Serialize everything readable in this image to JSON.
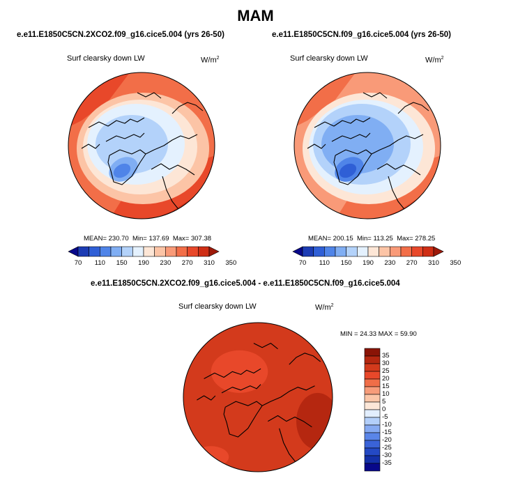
{
  "figure": {
    "season_title": "MAM"
  },
  "colors": {
    "hbar": [
      "#08088a",
      "#1c3cb4",
      "#2f5fd6",
      "#4f84e8",
      "#80aef3",
      "#b3d2fa",
      "#e4f1fe",
      "#fde6d6",
      "#fcc4a6",
      "#f99a78",
      "#f26e48",
      "#e8482a",
      "#cf2e15",
      "#9e1a0a"
    ],
    "vbar": [
      "#08088a",
      "#1430a8",
      "#2449c4",
      "#3a63d8",
      "#5a85e8",
      "#86aaf2",
      "#b3cffa",
      "#e2eefe",
      "#fde7d8",
      "#fbc6a8",
      "#f79c7a",
      "#f06e48",
      "#e8482a",
      "#d33a1c",
      "#b52710",
      "#8a1406"
    ],
    "coast": "#000000"
  },
  "chart_data": [
    {
      "type": "heatmap",
      "projection": "north-polar-stereographic",
      "title": "e.e11.E1850C5CN.2XCO2.f09_g16.cice5.004 (yrs 26-50)",
      "variable": "Surf clearsky down LW",
      "units": "W/m",
      "units_exp": "2",
      "mean_text": "MEAN= 230.70",
      "min_text": "Min= 137.69",
      "max_text": "Max= 307.38",
      "mean": 230.7,
      "min": 137.69,
      "max": 307.38,
      "levels": [
        70,
        90,
        110,
        130,
        150,
        170,
        190,
        210,
        230,
        250,
        270,
        290,
        310,
        330,
        350
      ],
      "level_labels": [
        "70",
        "110",
        "150",
        "190",
        "230",
        "270",
        "310",
        "350"
      ],
      "label_levels": [
        70,
        110,
        150,
        190,
        230,
        270,
        310,
        350
      ]
    },
    {
      "type": "heatmap",
      "projection": "north-polar-stereographic",
      "title": "e.e11.E1850C5CN.f09_g16.cice5.004 (yrs 26-50)",
      "variable": "Surf clearsky down LW",
      "units": "W/m",
      "units_exp": "2",
      "mean_text": "MEAN= 200.15",
      "min_text": "Min= 113.25",
      "max_text": "Max= 278.25",
      "mean": 200.15,
      "min": 113.25,
      "max": 278.25,
      "levels": [
        70,
        90,
        110,
        130,
        150,
        170,
        190,
        210,
        230,
        250,
        270,
        290,
        310,
        330,
        350
      ],
      "level_labels": [
        "70",
        "110",
        "150",
        "190",
        "230",
        "270",
        "310",
        "350"
      ],
      "label_levels": [
        70,
        110,
        150,
        190,
        230,
        270,
        310,
        350
      ]
    },
    {
      "type": "heatmap",
      "projection": "north-polar-stereographic",
      "title": "e.e11.E1850C5CN.2XCO2.f09_g16.cice5.004 - e.e11.E1850C5CN.f09_g16.cice5.004",
      "variable": "Surf clearsky down LW",
      "units": "W/m",
      "units_exp": "2",
      "minmax_text": "MIN =  24.33 MAX =  59.90",
      "min": 24.33,
      "max": 59.9,
      "levels": [
        -35,
        -30,
        -25,
        -20,
        -15,
        -10,
        -5,
        0,
        5,
        10,
        15,
        20,
        25,
        30,
        35
      ],
      "level_labels": [
        "35",
        "30",
        "25",
        "20",
        "15",
        "10",
        "5",
        "0",
        "-5",
        "-10",
        "-15",
        "-20",
        "-25",
        "-30",
        "-35"
      ]
    }
  ]
}
